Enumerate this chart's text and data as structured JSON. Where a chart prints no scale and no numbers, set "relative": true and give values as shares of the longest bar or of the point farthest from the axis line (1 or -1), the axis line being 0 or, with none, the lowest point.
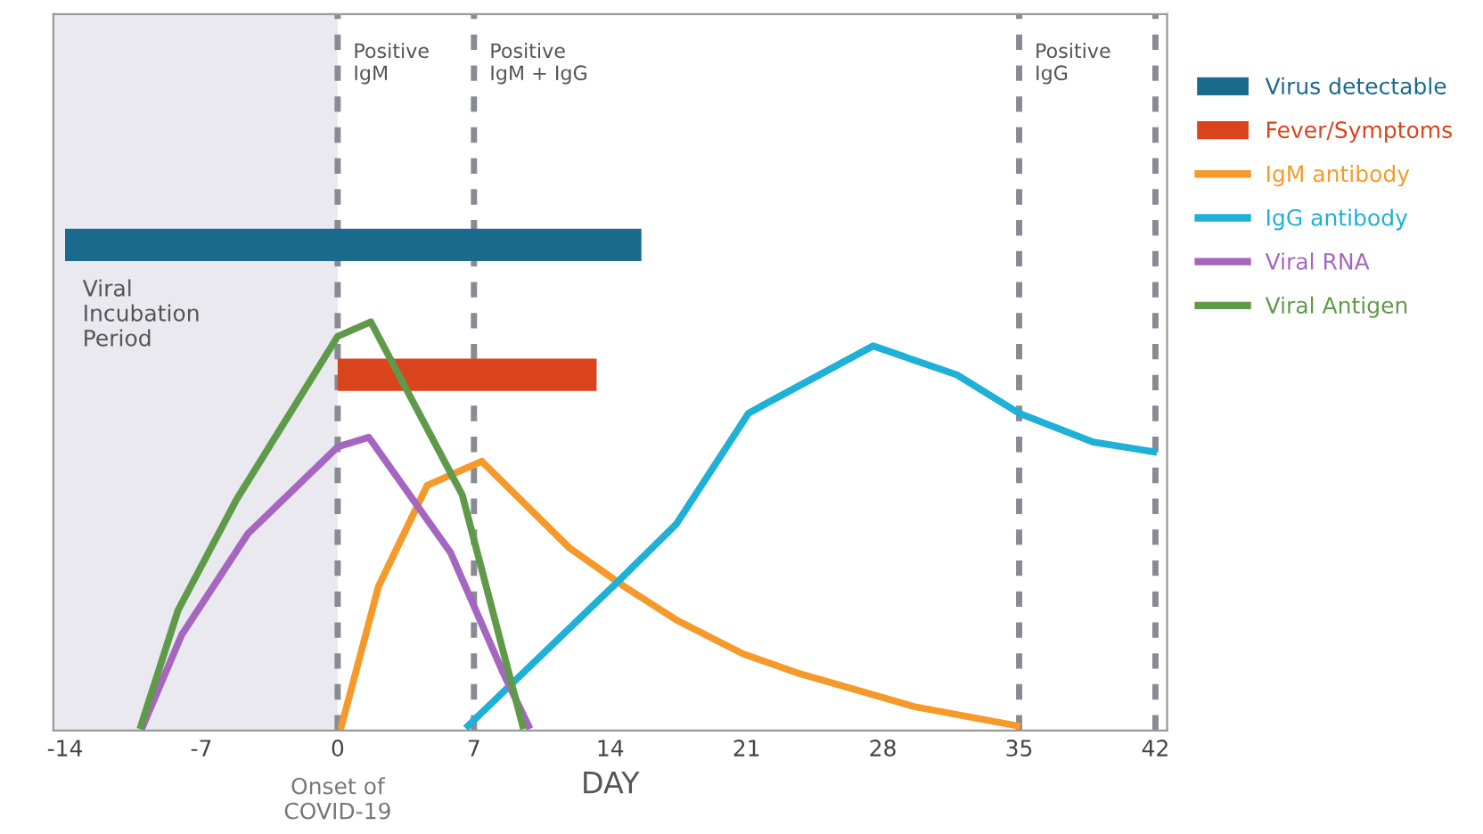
{
  "chart_data": {
    "type": "line",
    "relative": true,
    "xlabel": "DAY",
    "xlim": [
      -14.6,
      42.6
    ],
    "xticks": [
      -14,
      -7,
      0,
      7,
      14,
      21,
      28,
      35,
      42
    ],
    "series": [
      {
        "name": "Virus detectable",
        "type": "step",
        "color": "#1a6a8c",
        "x": [
          -14,
          15.6
        ],
        "values": [
          1,
          1
        ]
      },
      {
        "name": "Fever/Symptoms",
        "type": "step",
        "color": "#d9441c",
        "x": [
          0,
          13.3
        ],
        "values": [
          0.73,
          0.73
        ]
      },
      {
        "name": "IgM antibody",
        "color": "#f59a2a",
        "x": [
          0.2,
          2.1,
          4.6,
          7.4,
          11.9,
          14.7,
          17.4,
          20.8,
          23.6,
          29.6,
          34.9
        ],
        "values": [
          0,
          0.29,
          0.5,
          0.55,
          0.37,
          0.29,
          0.22,
          0.15,
          0.11,
          0.04,
          0
        ]
      },
      {
        "name": "IgG antibody",
        "color": "#1eb0d6",
        "x": [
          6.7,
          14.4,
          17.4,
          21.1,
          22.0,
          27.5,
          31.8,
          35.0,
          38.8,
          41.9
        ],
        "values": [
          0,
          0.3,
          0.42,
          0.65,
          0.67,
          0.79,
          0.73,
          0.65,
          0.59,
          0.57
        ]
      },
      {
        "name": "Viral RNA",
        "color": "#a566c0",
        "x": [
          -10.0,
          -8.0,
          -4.6,
          0,
          1.6,
          5.8,
          8.5,
          9.8
        ],
        "values": [
          0,
          0.19,
          0.4,
          0.58,
          0.6,
          0.36,
          0.11,
          0
        ]
      },
      {
        "name": "Viral Antigen",
        "color": "#5f9a4a",
        "x": [
          -10.1,
          -8.2,
          -5.2,
          0,
          1.7,
          6.4,
          9.5
        ],
        "values": [
          0,
          0.24,
          0.47,
          0.81,
          0.84,
          0.48,
          0
        ]
      }
    ],
    "bands": [
      {
        "axis": "x",
        "from": -14.6,
        "to": 0,
        "label": "Viral\nIncubation\nPeriod",
        "color": "#e9e9ef"
      }
    ],
    "ref_lines": [
      {
        "axis": "x",
        "value": 0,
        "label": "Positive\nIgM",
        "color": "#8a8a94",
        "line_style": "dashed"
      },
      {
        "axis": "x",
        "value": 7,
        "label": "Positive\nIgM + IgG",
        "color": "#8a8a94",
        "line_style": "dashed"
      },
      {
        "axis": "x",
        "value": 35,
        "label": "Positive\nIgG",
        "color": "#8a8a94",
        "line_style": "dashed"
      },
      {
        "axis": "x",
        "value": 42,
        "label": null,
        "color": "#8a8a94",
        "line_style": "dashed"
      }
    ],
    "annotations": [
      "Onset of\nCOVID-19"
    ],
    "legend": "right",
    "grid": false,
    "marker": "none"
  }
}
